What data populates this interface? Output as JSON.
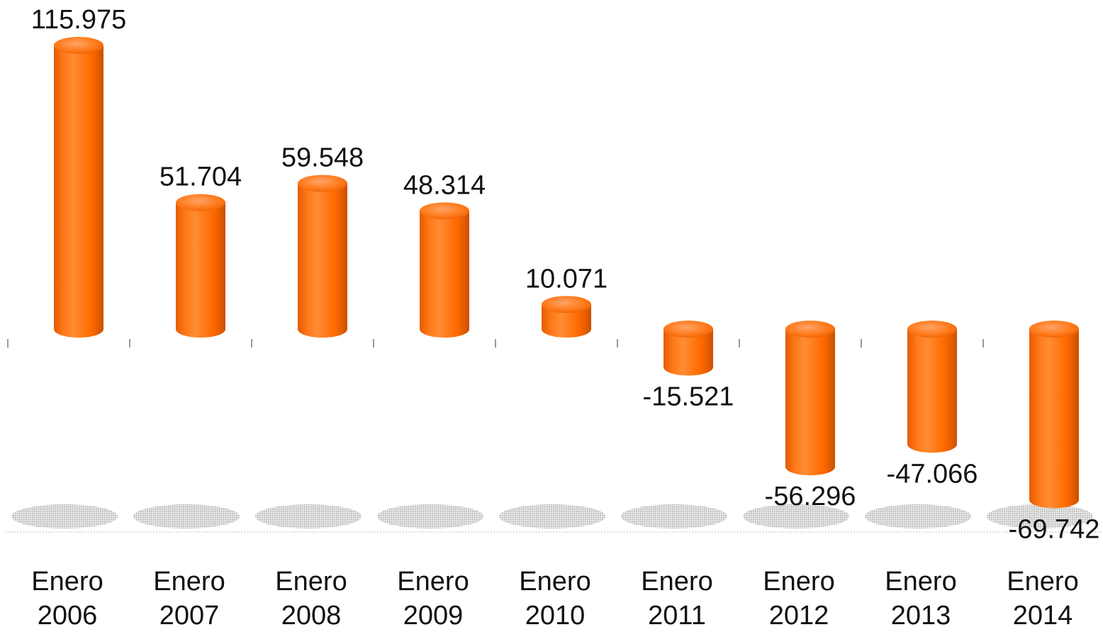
{
  "chart_data": {
    "type": "bar",
    "title": "",
    "xlabel": "",
    "ylabel": "",
    "categories": [
      [
        "Enero",
        "2006"
      ],
      [
        "Enero",
        "2007"
      ],
      [
        "Enero",
        "2008"
      ],
      [
        "Enero",
        "2009"
      ],
      [
        "Enero",
        "2010"
      ],
      [
        "Enero",
        "2011"
      ],
      [
        "Enero",
        "2012"
      ],
      [
        "Enero",
        "2013"
      ],
      [
        "Enero",
        "2014"
      ]
    ],
    "values": [
      115975,
      51704,
      59548,
      48314,
      10071,
      -15521,
      -56296,
      -47066,
      -69742
    ],
    "data_labels": [
      "115.975",
      "51.704",
      "59.548",
      "48.314",
      "10.071",
      "-15.521",
      "-56.296",
      "-47.066",
      "-69.742"
    ],
    "ylim": [
      -75000,
      125000
    ],
    "grid": false,
    "legend": "none",
    "bar_style": "3d-cylinder",
    "bar_color": "#ff6600",
    "bar_highlight": "#ff9a4d",
    "bar_shadow": "#c84e00",
    "floor_shadow_color": "#b8b8b8",
    "axis_color": "#9a9a9a"
  }
}
